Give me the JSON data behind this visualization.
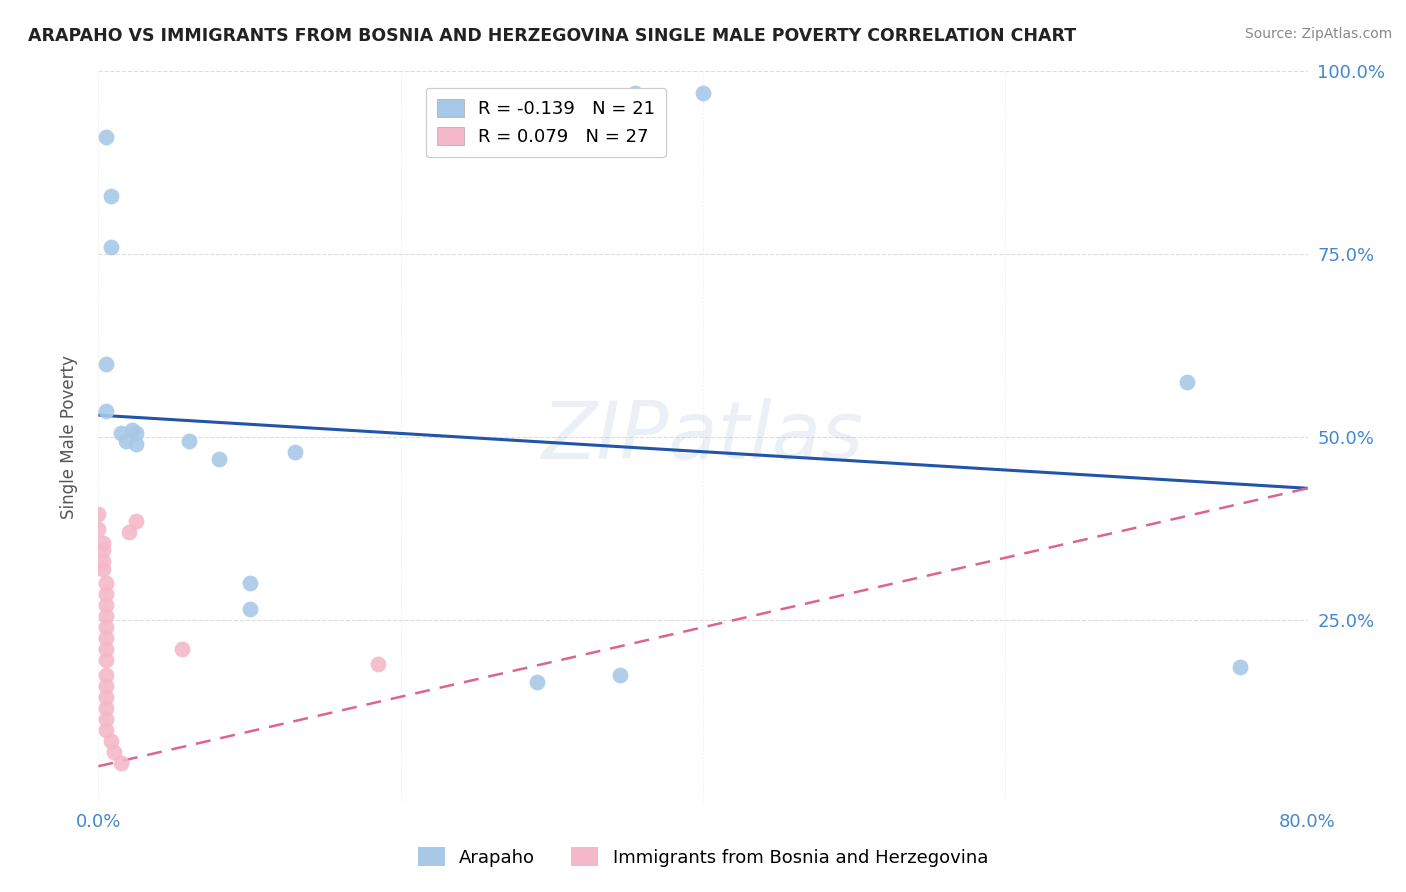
{
  "title": "ARAPAHO VS IMMIGRANTS FROM BOSNIA AND HERZEGOVINA SINGLE MALE POVERTY CORRELATION CHART",
  "source": "Source: ZipAtlas.com",
  "ylabel": "Single Male Poverty",
  "xlim": [
    0.0,
    0.8
  ],
  "ylim": [
    0.0,
    1.0
  ],
  "yticks": [
    0.0,
    0.25,
    0.5,
    0.75,
    1.0
  ],
  "ytick_labels": [
    "",
    "25.0%",
    "50.0%",
    "75.0%",
    "100.0%"
  ],
  "xtick_labels": [
    "0.0%",
    "80.0%"
  ],
  "legend1_label": "R = -0.139   N = 21",
  "legend2_label": "R = 0.079   N = 27",
  "legend_bottom_label1": "Arapaho",
  "legend_bottom_label2": "Immigrants from Bosnia and Herzegovina",
  "blue_color": "#a8c8e8",
  "pink_color": "#f4b8c8",
  "line_blue": "#2255aa",
  "line_pink": "#dd6688",
  "blue_scatter": [
    [
      0.005,
      0.91
    ],
    [
      0.008,
      0.83
    ],
    [
      0.008,
      0.76
    ],
    [
      0.005,
      0.6
    ],
    [
      0.005,
      0.535
    ],
    [
      0.015,
      0.505
    ],
    [
      0.018,
      0.495
    ],
    [
      0.022,
      0.51
    ],
    [
      0.025,
      0.505
    ],
    [
      0.025,
      0.49
    ],
    [
      0.06,
      0.495
    ],
    [
      0.08,
      0.47
    ],
    [
      0.1,
      0.265
    ],
    [
      0.1,
      0.3
    ],
    [
      0.13,
      0.48
    ],
    [
      0.29,
      0.165
    ],
    [
      0.345,
      0.175
    ],
    [
      0.355,
      0.97
    ],
    [
      0.4,
      0.97
    ],
    [
      0.72,
      0.575
    ],
    [
      0.755,
      0.185
    ]
  ],
  "pink_scatter": [
    [
      0.0,
      0.395
    ],
    [
      0.0,
      0.375
    ],
    [
      0.003,
      0.355
    ],
    [
      0.003,
      0.345
    ],
    [
      0.003,
      0.33
    ],
    [
      0.003,
      0.32
    ],
    [
      0.005,
      0.3
    ],
    [
      0.005,
      0.285
    ],
    [
      0.005,
      0.27
    ],
    [
      0.005,
      0.255
    ],
    [
      0.005,
      0.24
    ],
    [
      0.005,
      0.225
    ],
    [
      0.005,
      0.21
    ],
    [
      0.005,
      0.195
    ],
    [
      0.005,
      0.175
    ],
    [
      0.005,
      0.16
    ],
    [
      0.005,
      0.145
    ],
    [
      0.005,
      0.13
    ],
    [
      0.005,
      0.115
    ],
    [
      0.005,
      0.1
    ],
    [
      0.008,
      0.085
    ],
    [
      0.01,
      0.07
    ],
    [
      0.015,
      0.055
    ],
    [
      0.02,
      0.37
    ],
    [
      0.025,
      0.385
    ],
    [
      0.055,
      0.21
    ],
    [
      0.185,
      0.19
    ]
  ],
  "blue_line": [
    0.0,
    0.53,
    0.8,
    0.43
  ],
  "pink_line": [
    0.0,
    0.05,
    0.8,
    0.43
  ],
  "background_color": "#ffffff",
  "grid_color": "#dddddd"
}
